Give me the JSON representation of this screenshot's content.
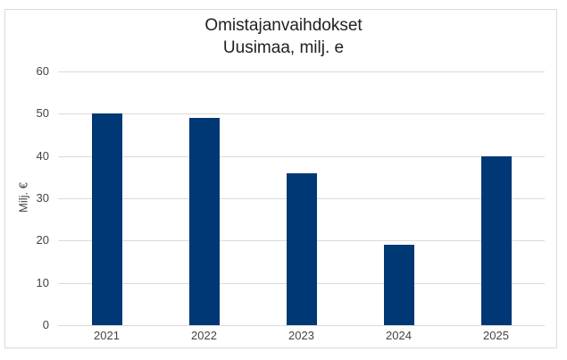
{
  "chart_data": {
    "type": "bar",
    "title": "Omistajanvaihdokset",
    "subtitle": "Uusimaa, milj. e",
    "categories": [
      "2021",
      "2022",
      "2023",
      "2024",
      "2025"
    ],
    "values": [
      50,
      49,
      36,
      19,
      40
    ],
    "xlabel": "",
    "ylabel": "Milj. €",
    "ylim": [
      0,
      60
    ],
    "yticks": [
      0,
      10,
      20,
      30,
      40,
      50,
      60
    ],
    "grid": "horizontal",
    "legend": "none",
    "bar_color": "#003876",
    "gridline_color": "#dadada",
    "border_color": "#d9d9d9",
    "title_color": "#212121",
    "axis_label_color": "#444444"
  }
}
